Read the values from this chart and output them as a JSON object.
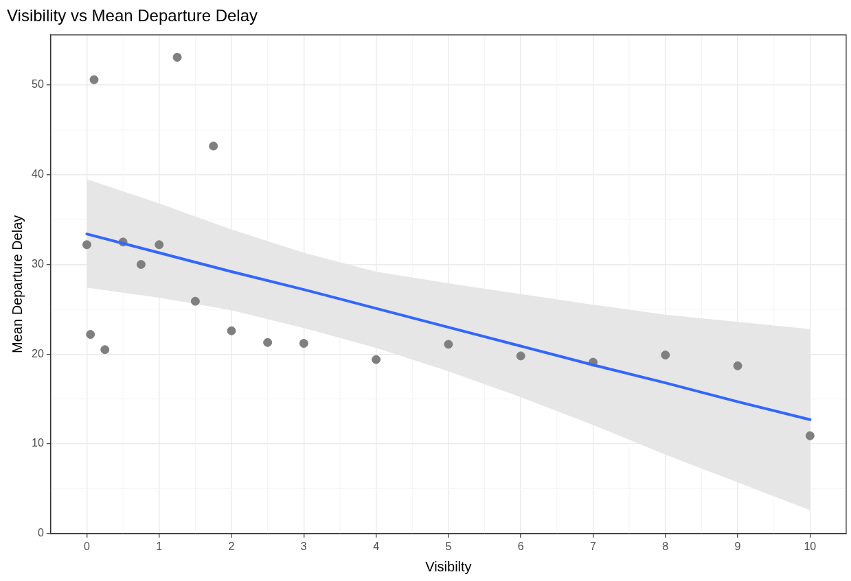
{
  "chart_data": {
    "type": "scatter",
    "title": "Visibility vs Mean Departure Delay",
    "xlabel": "Visibilty",
    "ylabel": "Mean Departure Delay",
    "xlim": [
      -0.5,
      10.5
    ],
    "xticks": [
      0,
      1,
      2,
      3,
      4,
      5,
      6,
      7,
      8,
      9,
      10
    ],
    "ylim": [
      0,
      55.6
    ],
    "yticks": [
      0,
      10,
      20,
      30,
      40,
      50
    ],
    "grid": true,
    "legend": false,
    "marker": "circle",
    "series": [
      {
        "color": "#7f7f7f",
        "x": [
          0,
          0.05,
          0.1,
          0.25,
          0.5,
          0.75,
          1,
          1.25,
          1.5,
          1.75,
          2,
          2.5,
          3,
          4,
          5,
          6,
          7,
          8,
          9,
          10
        ],
        "values": [
          32.2,
          22.2,
          50.6,
          20.5,
          32.5,
          30.0,
          32.2,
          53.1,
          25.9,
          43.2,
          22.6,
          21.3,
          21.2,
          19.4,
          21.1,
          19.8,
          19.1,
          19.9,
          18.7,
          10.9
        ]
      },
      {
        "type": "line",
        "color": "#3366ff",
        "line_style": "solid",
        "marker": "none",
        "x": [
          0,
          1,
          2,
          3,
          4,
          5,
          6,
          7,
          8,
          9,
          10
        ],
        "values": [
          33.4,
          31.3,
          29.2,
          27.2,
          25.1,
          23.0,
          20.9,
          18.8,
          16.8,
          14.7,
          12.7
        ],
        "lower": [
          27.4,
          26.3,
          24.9,
          22.9,
          20.7,
          18.1,
          15.2,
          12.1,
          8.8,
          5.7,
          2.6
        ],
        "upper": [
          39.5,
          36.8,
          33.9,
          31.3,
          29.2,
          27.9,
          26.7,
          25.5,
          24.4,
          23.6,
          22.8
        ]
      }
    ]
  }
}
